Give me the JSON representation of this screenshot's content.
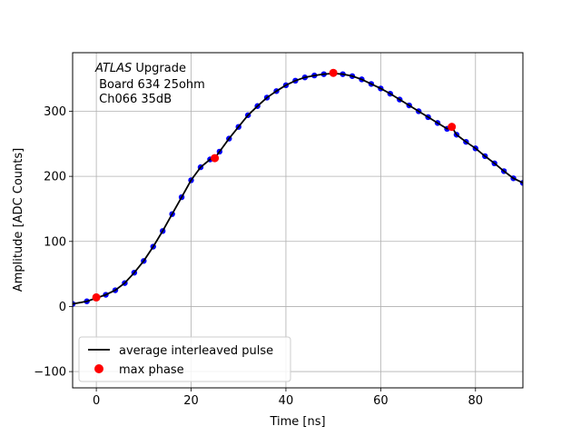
{
  "chart_data": {
    "type": "scatter",
    "xlabel": "Time [ns]",
    "ylabel": "Amplitude [ADC Counts]",
    "xlim": [
      -5,
      90
    ],
    "ylim": [
      -125,
      390
    ],
    "xticks": [
      0,
      20,
      40,
      60,
      80
    ],
    "yticks": [
      -100,
      0,
      100,
      200,
      300
    ],
    "grid": true,
    "legend_position": "lower-left",
    "annotation": {
      "line1_italic": "ATLAS",
      "line1_rest": " Upgrade",
      "line2": " Board 634 25ohm",
      "line3": " Ch066 35dB"
    },
    "series": [
      {
        "name": "average interleaved pulse",
        "kind": "line",
        "color": "#000000",
        "x": [
          -5,
          -2,
          0,
          2,
          4,
          6,
          8,
          10,
          12,
          14,
          16,
          18,
          20,
          22,
          24,
          25,
          26,
          28,
          30,
          32,
          34,
          36,
          38,
          40,
          42,
          44,
          46,
          48,
          50,
          52,
          54,
          56,
          58,
          60,
          62,
          64,
          66,
          68,
          70,
          72,
          74,
          75,
          76,
          78,
          80,
          82,
          84,
          86,
          88,
          90
        ],
        "y": [
          4,
          8,
          13,
          18,
          25,
          36,
          52,
          70,
          92,
          116,
          142,
          168,
          194,
          214,
          226,
          228,
          238,
          258,
          276,
          294,
          308,
          321,
          331,
          340,
          347,
          352,
          355,
          357,
          358,
          357,
          354,
          349,
          342,
          335,
          327,
          318,
          309,
          300,
          291,
          282,
          273,
          276,
          264,
          253,
          243,
          231,
          220,
          208,
          197,
          190
        ]
      },
      {
        "name": "",
        "kind": "scatter",
        "color": "#0000ff",
        "x": [
          -5,
          -2,
          0,
          2,
          4,
          6,
          8,
          10,
          12,
          14,
          16,
          18,
          20,
          22,
          24,
          26,
          28,
          30,
          32,
          34,
          36,
          38,
          40,
          42,
          44,
          46,
          48,
          50,
          52,
          54,
          56,
          58,
          60,
          62,
          64,
          66,
          68,
          70,
          72,
          74,
          76,
          78,
          80,
          82,
          84,
          86,
          88,
          90
        ],
        "y": [
          4,
          8,
          13,
          18,
          25,
          36,
          52,
          70,
          92,
          116,
          142,
          168,
          194,
          214,
          226,
          238,
          258,
          276,
          294,
          308,
          321,
          331,
          340,
          347,
          352,
          355,
          357,
          358,
          357,
          354,
          349,
          342,
          335,
          327,
          318,
          309,
          300,
          291,
          282,
          273,
          264,
          253,
          243,
          231,
          220,
          208,
          197,
          190
        ]
      },
      {
        "name": "max phase",
        "kind": "scatter",
        "color": "#ff0000",
        "x": [
          0,
          25,
          50,
          75
        ],
        "y": [
          14,
          228,
          359,
          276
        ]
      }
    ]
  }
}
